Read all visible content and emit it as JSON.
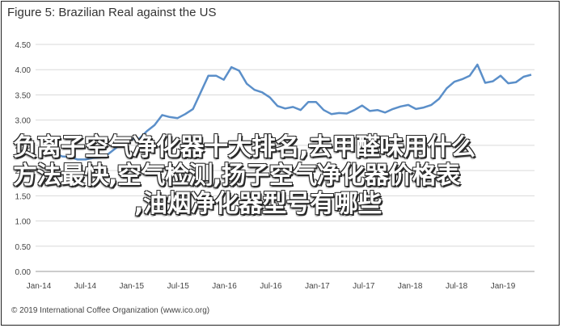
{
  "chart_data": {
    "type": "line",
    "title": "Figure 5: Brazilian Real against the US",
    "xlabel": "",
    "ylabel": "",
    "ylim": [
      0,
      4.5
    ],
    "y_ticks": [
      "0.00",
      "0.50",
      "1.00",
      "1.50",
      "2.00",
      "2.50",
      "3.00",
      "3.50",
      "4.00",
      "4.50"
    ],
    "x_ticks": [
      "Jan-14",
      "Jul-14",
      "Jan-15",
      "Jul-15",
      "Jan-16",
      "Jul-16",
      "Jan-17",
      "Jul-17",
      "Jan-18",
      "Jul-18",
      "Jan-19"
    ],
    "grid": "horizontal",
    "line_color": "#5b8fc9",
    "series": [
      {
        "values": [
          2.38,
          2.35,
          2.28,
          2.27,
          2.22,
          2.22,
          2.25,
          2.26,
          2.33,
          2.45,
          2.55,
          2.62,
          2.63,
          2.78,
          2.9,
          3.1,
          3.06,
          3.04,
          3.12,
          3.22,
          3.55,
          3.88,
          3.88,
          3.8,
          4.05,
          3.98,
          3.72,
          3.6,
          3.55,
          3.45,
          3.28,
          3.23,
          3.26,
          3.2,
          3.36,
          3.36,
          3.2,
          3.12,
          3.14,
          3.13,
          3.2,
          3.29,
          3.18,
          3.2,
          3.15,
          3.22,
          3.27,
          3.3,
          3.22,
          3.25,
          3.3,
          3.42,
          3.63,
          3.76,
          3.81,
          3.88,
          4.1,
          3.74,
          3.77,
          3.88,
          3.73,
          3.75,
          3.86,
          3.9
        ]
      }
    ]
  },
  "footer": "© 2019 International Coffee Organization (www.ico.org)",
  "overlay": {
    "line1": "负离子空气净化器十大排名,去甲醛味用什么",
    "line2": "方法最快,空气检测,扬子空气净化器价格表",
    "line3": ",油烟净化器型号有哪些"
  }
}
